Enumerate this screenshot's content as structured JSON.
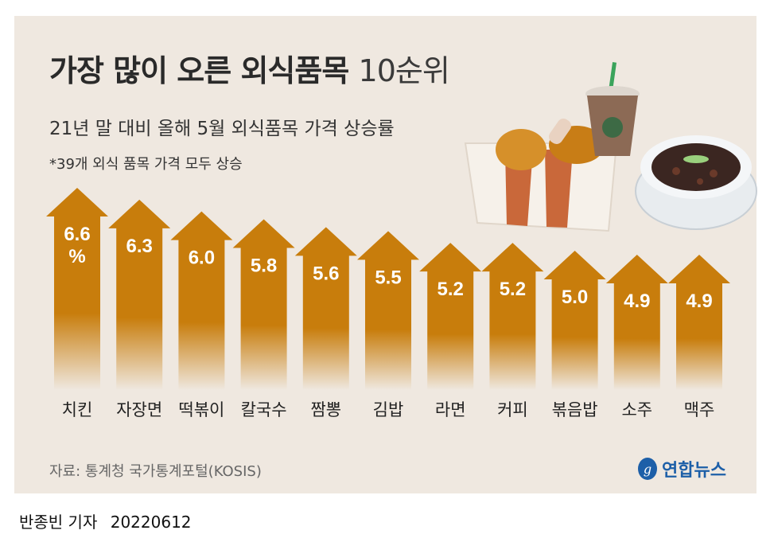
{
  "header": {
    "title": "가장 많이 오른 외식품목",
    "title_rank": "10순위",
    "subtitle": "21년 말 대비 올해 5월 외식품목 가격 상승률",
    "note": "*39개 외식 품목 가격 모두 상승"
  },
  "footer": {
    "source": "자료: 통계청 국가통계포털(KOSIS)",
    "logo_text": "연합뉴스",
    "byline": "반종빈 기자",
    "date": "20220612"
  },
  "colors": {
    "panel_bg": "#efe8e0",
    "arrow_top": "#c87d0c",
    "arrow_bottom": "#efe8e0",
    "value_text": "#ffffff",
    "brand": "#1d5fa8"
  },
  "chart_data": {
    "type": "bar",
    "categories": [
      "치킨",
      "자장면",
      "떡볶이",
      "칼국수",
      "짬뽕",
      "김밥",
      "라면",
      "커피",
      "볶음밥",
      "소주",
      "맥주"
    ],
    "values": [
      6.6,
      6.3,
      6.0,
      5.8,
      5.6,
      5.5,
      5.2,
      5.2,
      5.0,
      4.9,
      4.9
    ],
    "value_labels": [
      "6.6\n%",
      "6.3",
      "6.0",
      "5.8",
      "5.6",
      "5.5",
      "5.2",
      "5.2",
      "5.0",
      "4.9",
      "4.9"
    ],
    "title": "가장 많이 오른 외식품목 10순위",
    "xlabel": "",
    "ylabel": "",
    "ylim": [
      0,
      6.6
    ],
    "grid": false,
    "legend": "none"
  }
}
